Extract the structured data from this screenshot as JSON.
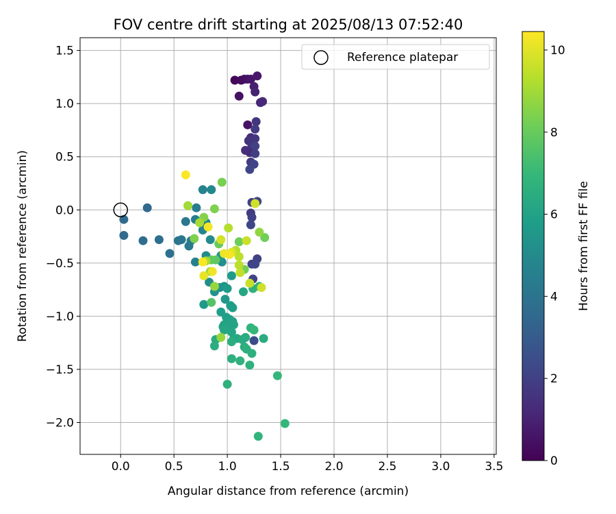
{
  "chart_data": {
    "type": "scatter",
    "title": "FOV centre drift starting at 2025/08/13 07:52:40",
    "xlabel": "Angular distance from reference (arcmin)",
    "ylabel": "Rotation from reference (arcmin)",
    "xlim": [
      -0.38,
      3.52
    ],
    "ylim": [
      -2.3,
      1.62
    ],
    "x_ticks": [
      0.0,
      0.5,
      1.0,
      1.5,
      2.0,
      2.5,
      3.0,
      3.5
    ],
    "x_tick_labels": [
      "0.0",
      "0.5",
      "1.0",
      "1.5",
      "2.0",
      "2.5",
      "3.0",
      "3.5"
    ],
    "y_ticks": [
      -2.0,
      -1.5,
      -1.0,
      -0.5,
      0.0,
      0.5,
      1.0,
      1.5
    ],
    "y_tick_labels": [
      "−2.0",
      "−1.5",
      "−1.0",
      "−0.5",
      "0.0",
      "0.5",
      "1.0",
      "1.5"
    ],
    "grid": true,
    "legend": {
      "position": "top-right",
      "entries": [
        "Reference platepar"
      ]
    },
    "reference_point": {
      "x": 0.0,
      "y": 0.0,
      "label": "Reference platepar"
    },
    "colorbar": {
      "label": "Hours from first FF file",
      "colormap": "viridis",
      "range": [
        0,
        10.45
      ],
      "ticks": [
        0,
        2,
        4,
        6,
        8,
        10
      ],
      "tick_labels": [
        "0",
        "2",
        "4",
        "6",
        "8",
        "10"
      ]
    },
    "series": [
      {
        "color_by": "hours",
        "points": [
          {
            "x": 1.07,
            "y": 1.22,
            "c": 0.2
          },
          {
            "x": 1.13,
            "y": 1.22,
            "c": 0.3
          },
          {
            "x": 1.16,
            "y": 1.23,
            "c": 0.4
          },
          {
            "x": 1.19,
            "y": 1.23,
            "c": 0.5
          },
          {
            "x": 1.22,
            "y": 1.23,
            "c": 0.6
          },
          {
            "x": 1.28,
            "y": 1.26,
            "c": 0.7
          },
          {
            "x": 1.11,
            "y": 1.07,
            "c": 0.5
          },
          {
            "x": 1.25,
            "y": 1.16,
            "c": 0.9
          },
          {
            "x": 1.26,
            "y": 1.11,
            "c": 1.0
          },
          {
            "x": 1.31,
            "y": 1.01,
            "c": 1.1
          },
          {
            "x": 1.33,
            "y": 1.02,
            "c": 1.2
          },
          {
            "x": 1.19,
            "y": 0.8,
            "c": 0.5
          },
          {
            "x": 1.27,
            "y": 0.83,
            "c": 1.6
          },
          {
            "x": 1.26,
            "y": 0.76,
            "c": 1.8
          },
          {
            "x": 1.22,
            "y": 0.68,
            "c": 1.3
          },
          {
            "x": 1.2,
            "y": 0.65,
            "c": 1.5
          },
          {
            "x": 1.26,
            "y": 0.67,
            "c": 1.7
          },
          {
            "x": 1.23,
            "y": 0.61,
            "c": 1.6
          },
          {
            "x": 1.26,
            "y": 0.6,
            "c": 2.0
          },
          {
            "x": 1.17,
            "y": 0.56,
            "c": 1.4
          },
          {
            "x": 1.21,
            "y": 0.54,
            "c": 1.3
          },
          {
            "x": 1.26,
            "y": 0.53,
            "c": 1.9
          },
          {
            "x": 1.22,
            "y": 0.45,
            "c": 1.8
          },
          {
            "x": 1.25,
            "y": 0.43,
            "c": 2.1
          },
          {
            "x": 1.21,
            "y": 0.38,
            "c": 2.2
          },
          {
            "x": 1.23,
            "y": 0.07,
            "c": 2.0
          },
          {
            "x": 1.28,
            "y": 0.08,
            "c": 2.1
          },
          {
            "x": 1.22,
            "y": -0.03,
            "c": 1.8
          },
          {
            "x": 1.23,
            "y": -0.07,
            "c": 2.0
          },
          {
            "x": 1.22,
            "y": -0.14,
            "c": 2.2
          },
          {
            "x": 1.28,
            "y": -0.46,
            "c": 2.0
          },
          {
            "x": 1.23,
            "y": -0.51,
            "c": 2.1
          },
          {
            "x": 1.26,
            "y": -0.51,
            "c": 2.2
          },
          {
            "x": 1.24,
            "y": -0.65,
            "c": 2.1
          },
          {
            "x": 1.25,
            "y": -1.23,
            "c": 2.4
          },
          {
            "x": 0.03,
            "y": -0.09,
            "c": 3.6
          },
          {
            "x": 0.03,
            "y": -0.24,
            "c": 3.6
          },
          {
            "x": 0.25,
            "y": 0.02,
            "c": 3.5
          },
          {
            "x": 0.21,
            "y": -0.29,
            "c": 3.7
          },
          {
            "x": 0.36,
            "y": -0.28,
            "c": 3.8
          },
          {
            "x": 0.46,
            "y": -0.41,
            "c": 3.9
          },
          {
            "x": 0.54,
            "y": -0.29,
            "c": 4.0
          },
          {
            "x": 0.57,
            "y": -0.28,
            "c": 4.1
          },
          {
            "x": 0.61,
            "y": -0.11,
            "c": 4.2
          },
          {
            "x": 0.64,
            "y": -0.34,
            "c": 4.3
          },
          {
            "x": 0.66,
            "y": -0.29,
            "c": 4.3
          },
          {
            "x": 0.7,
            "y": -0.09,
            "c": 4.4
          },
          {
            "x": 0.71,
            "y": 0.02,
            "c": 4.4
          },
          {
            "x": 0.7,
            "y": -0.49,
            "c": 4.6
          },
          {
            "x": 0.77,
            "y": 0.19,
            "c": 4.7
          },
          {
            "x": 0.77,
            "y": -0.19,
            "c": 4.8
          },
          {
            "x": 0.8,
            "y": -0.12,
            "c": 4.8
          },
          {
            "x": 0.85,
            "y": 0.19,
            "c": 4.9
          },
          {
            "x": 0.84,
            "y": -0.28,
            "c": 5.0
          },
          {
            "x": 0.8,
            "y": -0.43,
            "c": 5.0
          },
          {
            "x": 0.83,
            "y": -0.68,
            "c": 5.1
          },
          {
            "x": 0.95,
            "y": -0.49,
            "c": 5.2
          },
          {
            "x": 0.88,
            "y": -0.77,
            "c": 5.3
          },
          {
            "x": 0.93,
            "y": -0.73,
            "c": 5.4
          },
          {
            "x": 0.97,
            "y": -0.72,
            "c": 5.4
          },
          {
            "x": 0.94,
            "y": -0.43,
            "c": 5.5
          },
          {
            "x": 0.78,
            "y": -0.89,
            "c": 5.6
          },
          {
            "x": 0.98,
            "y": -0.84,
            "c": 5.6
          },
          {
            "x": 1.0,
            "y": -0.74,
            "c": 5.7
          },
          {
            "x": 1.04,
            "y": -0.62,
            "c": 5.7
          },
          {
            "x": 1.03,
            "y": -0.9,
            "c": 5.8
          },
          {
            "x": 1.05,
            "y": -0.92,
            "c": 5.8
          },
          {
            "x": 0.94,
            "y": -0.96,
            "c": 5.8
          },
          {
            "x": 0.99,
            "y": -1.01,
            "c": 5.9
          },
          {
            "x": 1.02,
            "y": -1.03,
            "c": 5.9
          },
          {
            "x": 1.05,
            "y": -1.05,
            "c": 6.0
          },
          {
            "x": 0.97,
            "y": -1.08,
            "c": 6.0
          },
          {
            "x": 0.96,
            "y": -1.1,
            "c": 6.0
          },
          {
            "x": 1.01,
            "y": -1.08,
            "c": 6.1
          },
          {
            "x": 1.06,
            "y": -1.08,
            "c": 6.1
          },
          {
            "x": 0.97,
            "y": -1.13,
            "c": 6.2
          },
          {
            "x": 1.04,
            "y": -1.15,
            "c": 6.2
          },
          {
            "x": 1.06,
            "y": -1.21,
            "c": 6.3
          },
          {
            "x": 1.09,
            "y": -1.21,
            "c": 6.3
          },
          {
            "x": 1.14,
            "y": -1.22,
            "c": 6.4
          },
          {
            "x": 1.17,
            "y": -1.2,
            "c": 6.4
          },
          {
            "x": 1.04,
            "y": -1.24,
            "c": 6.5
          },
          {
            "x": 0.89,
            "y": -1.22,
            "c": 6.4
          },
          {
            "x": 0.88,
            "y": -1.28,
            "c": 6.5
          },
          {
            "x": 1.16,
            "y": -1.29,
            "c": 6.5
          },
          {
            "x": 1.18,
            "y": -1.31,
            "c": 6.6
          },
          {
            "x": 1.23,
            "y": -1.35,
            "c": 6.6
          },
          {
            "x": 1.04,
            "y": -1.4,
            "c": 6.6
          },
          {
            "x": 1.12,
            "y": -1.42,
            "c": 6.7
          },
          {
            "x": 1.21,
            "y": -1.46,
            "c": 6.7
          },
          {
            "x": 1.34,
            "y": -1.21,
            "c": 6.4
          },
          {
            "x": 1.22,
            "y": -1.11,
            "c": 6.8
          },
          {
            "x": 1.25,
            "y": -1.13,
            "c": 6.9
          },
          {
            "x": 1.3,
            "y": -0.72,
            "c": 6.5
          },
          {
            "x": 1.24,
            "y": -0.74,
            "c": 6.7
          },
          {
            "x": 1.15,
            "y": -0.77,
            "c": 6.2
          },
          {
            "x": 1.47,
            "y": -1.56,
            "c": 6.9
          },
          {
            "x": 1.0,
            "y": -1.64,
            "c": 6.6
          },
          {
            "x": 1.29,
            "y": -2.13,
            "c": 6.8
          },
          {
            "x": 1.54,
            "y": -2.01,
            "c": 6.9
          },
          {
            "x": 0.85,
            "y": -0.87,
            "c": 7.6
          },
          {
            "x": 0.89,
            "y": -0.47,
            "c": 7.8
          },
          {
            "x": 0.85,
            "y": -0.47,
            "c": 7.9
          },
          {
            "x": 0.92,
            "y": -0.32,
            "c": 8.0
          },
          {
            "x": 1.11,
            "y": -0.3,
            "c": 8.1
          },
          {
            "x": 1.16,
            "y": -0.56,
            "c": 8.2
          },
          {
            "x": 0.95,
            "y": 0.26,
            "c": 8.3
          },
          {
            "x": 0.88,
            "y": 0.01,
            "c": 8.4
          },
          {
            "x": 0.69,
            "y": -0.27,
            "c": 8.4
          },
          {
            "x": 0.78,
            "y": -0.07,
            "c": 8.5
          },
          {
            "x": 1.35,
            "y": -0.26,
            "c": 8.2
          },
          {
            "x": 1.3,
            "y": -0.21,
            "c": 8.7
          },
          {
            "x": 0.94,
            "y": -1.2,
            "c": 8.8
          },
          {
            "x": 0.88,
            "y": -0.72,
            "c": 8.8
          },
          {
            "x": 0.84,
            "y": -0.58,
            "c": 8.9
          },
          {
            "x": 0.8,
            "y": -0.48,
            "c": 9.1
          },
          {
            "x": 0.63,
            "y": 0.04,
            "c": 9.0
          },
          {
            "x": 0.74,
            "y": -0.12,
            "c": 9.1
          },
          {
            "x": 1.01,
            "y": -0.17,
            "c": 9.3
          },
          {
            "x": 1.08,
            "y": -0.38,
            "c": 9.3
          },
          {
            "x": 1.11,
            "y": -0.44,
            "c": 9.4
          },
          {
            "x": 1.11,
            "y": -0.52,
            "c": 9.4
          },
          {
            "x": 1.12,
            "y": -0.59,
            "c": 9.5
          },
          {
            "x": 1.18,
            "y": -0.29,
            "c": 9.6
          },
          {
            "x": 1.21,
            "y": -0.69,
            "c": 9.6
          },
          {
            "x": 1.32,
            "y": -0.73,
            "c": 9.7
          },
          {
            "x": 1.26,
            "y": 0.06,
            "c": 9.7
          },
          {
            "x": 0.94,
            "y": -0.28,
            "c": 9.8
          },
          {
            "x": 1.04,
            "y": -0.4,
            "c": 9.9
          },
          {
            "x": 0.78,
            "y": -0.62,
            "c": 10.1
          },
          {
            "x": 0.86,
            "y": -0.58,
            "c": 10.2
          },
          {
            "x": 0.97,
            "y": -0.41,
            "c": 10.2
          },
          {
            "x": 1.02,
            "y": -0.42,
            "c": 10.3
          },
          {
            "x": 0.82,
            "y": -0.16,
            "c": 10.3
          },
          {
            "x": 0.77,
            "y": -0.49,
            "c": 10.4
          },
          {
            "x": 0.61,
            "y": 0.33,
            "c": 10.4
          }
        ]
      }
    ]
  }
}
